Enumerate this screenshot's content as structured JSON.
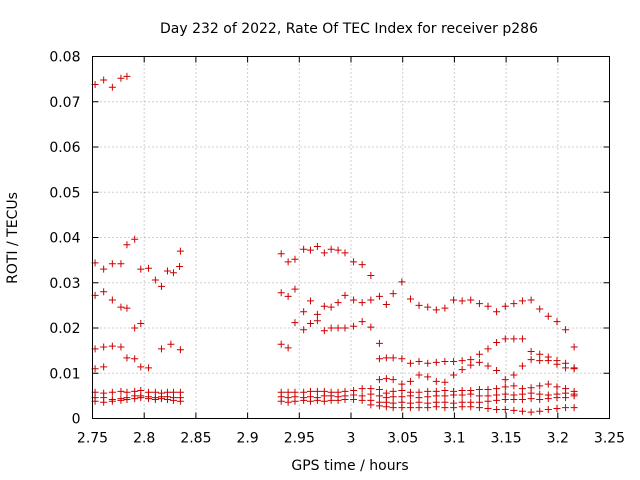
{
  "chart_data": {
    "type": "scatter",
    "title": "Day 232 of 2022, Rate Of TEC Index for receiver p286",
    "xlabel": "GPS time / hours",
    "ylabel": "ROTI / TECUs",
    "xlim": [
      2.75,
      3.25
    ],
    "ylim": [
      0,
      0.08
    ],
    "grid": true,
    "marker": "+",
    "marker_color": "#cc0000",
    "x_ticks": [
      {
        "value": 2.75,
        "label": "2.75"
      },
      {
        "value": 2.8,
        "label": "2.8"
      },
      {
        "value": 2.85,
        "label": "2.85"
      },
      {
        "value": 2.9,
        "label": "2.9"
      },
      {
        "value": 2.95,
        "label": "2.95"
      },
      {
        "value": 3.0,
        "label": "3"
      },
      {
        "value": 3.05,
        "label": "3.05"
      },
      {
        "value": 3.1,
        "label": "3.1"
      },
      {
        "value": 3.15,
        "label": "3.15"
      },
      {
        "value": 3.2,
        "label": "3.2"
      },
      {
        "value": 3.25,
        "label": "3.25"
      }
    ],
    "y_ticks": [
      {
        "value": 0,
        "label": "0"
      },
      {
        "value": 0.01,
        "label": "0.01"
      },
      {
        "value": 0.02,
        "label": "0.02"
      },
      {
        "value": 0.03,
        "label": "0.03"
      },
      {
        "value": 0.04,
        "label": "0.04"
      },
      {
        "value": 0.05,
        "label": "0.05"
      },
      {
        "value": 0.06,
        "label": "0.06"
      },
      {
        "value": 0.07,
        "label": "0.07"
      },
      {
        "value": 0.08,
        "label": "0.08"
      }
    ],
    "points": [
      [
        2.7525,
        0.0738
      ],
      [
        2.7608,
        0.0748
      ],
      [
        2.7692,
        0.0732
      ],
      [
        2.7775,
        0.0752
      ],
      [
        2.7833,
        0.0756
      ],
      [
        2.7525,
        0.0344
      ],
      [
        2.7608,
        0.033
      ],
      [
        2.7692,
        0.0342
      ],
      [
        2.7775,
        0.0342
      ],
      [
        2.7833,
        0.0384
      ],
      [
        2.7908,
        0.0396
      ],
      [
        2.7967,
        0.033
      ],
      [
        2.8042,
        0.0332
      ],
      [
        2.8108,
        0.0306
      ],
      [
        2.8167,
        0.0292
      ],
      [
        2.8225,
        0.0326
      ],
      [
        2.8283,
        0.0322
      ],
      [
        2.8342,
        0.0336
      ],
      [
        2.835,
        0.037
      ],
      [
        2.7525,
        0.0272
      ],
      [
        2.7608,
        0.028
      ],
      [
        2.7692,
        0.0262
      ],
      [
        2.7775,
        0.0246
      ],
      [
        2.7833,
        0.0244
      ],
      [
        2.7908,
        0.02
      ],
      [
        2.7967,
        0.021
      ],
      [
        2.7525,
        0.0154
      ],
      [
        2.7608,
        0.0158
      ],
      [
        2.7692,
        0.016
      ],
      [
        2.7775,
        0.0158
      ],
      [
        2.7833,
        0.0134
      ],
      [
        2.7908,
        0.0132
      ],
      [
        2.7967,
        0.0114
      ],
      [
        2.8042,
        0.0112
      ],
      [
        2.8167,
        0.0154
      ],
      [
        2.8258,
        0.0164
      ],
      [
        2.835,
        0.0152
      ],
      [
        2.7525,
        0.011
      ],
      [
        2.7608,
        0.0114
      ],
      [
        2.7525,
        0.0058
      ],
      [
        2.7608,
        0.0056
      ],
      [
        2.7692,
        0.0058
      ],
      [
        2.7775,
        0.006
      ],
      [
        2.7833,
        0.0058
      ],
      [
        2.7908,
        0.006
      ],
      [
        2.7967,
        0.0062
      ],
      [
        2.8042,
        0.0058
      ],
      [
        2.8108,
        0.0058
      ],
      [
        2.8167,
        0.0056
      ],
      [
        2.8225,
        0.0058
      ],
      [
        2.8283,
        0.0058
      ],
      [
        2.835,
        0.0058
      ],
      [
        2.7525,
        0.0046
      ],
      [
        2.7608,
        0.0046
      ],
      [
        2.7692,
        0.0042
      ],
      [
        2.7775,
        0.0044
      ],
      [
        2.7833,
        0.0046
      ],
      [
        2.7908,
        0.005
      ],
      [
        2.7967,
        0.005
      ],
      [
        2.8042,
        0.0048
      ],
      [
        2.8108,
        0.0046
      ],
      [
        2.8167,
        0.0048
      ],
      [
        2.8225,
        0.0048
      ],
      [
        2.8283,
        0.0046
      ],
      [
        2.835,
        0.0046
      ],
      [
        2.7525,
        0.0038
      ],
      [
        2.7608,
        0.0036
      ],
      [
        2.7692,
        0.0038
      ],
      [
        2.7775,
        0.004
      ],
      [
        2.7833,
        0.0042
      ],
      [
        2.7908,
        0.0044
      ],
      [
        2.7967,
        0.0046
      ],
      [
        2.8042,
        0.0044
      ],
      [
        2.8108,
        0.0042
      ],
      [
        2.8167,
        0.0044
      ],
      [
        2.8225,
        0.0042
      ],
      [
        2.8283,
        0.004
      ],
      [
        2.835,
        0.0038
      ],
      [
        2.9325,
        0.0364
      ],
      [
        2.9392,
        0.0346
      ],
      [
        2.9458,
        0.0352
      ],
      [
        2.9542,
        0.0374
      ],
      [
        2.9608,
        0.0372
      ],
      [
        2.9675,
        0.038
      ],
      [
        2.9742,
        0.0366
      ],
      [
        2.9808,
        0.0374
      ],
      [
        2.9875,
        0.0372
      ],
      [
        2.9942,
        0.0366
      ],
      [
        3.0025,
        0.0346
      ],
      [
        3.0108,
        0.034
      ],
      [
        3.0192,
        0.0316
      ],
      [
        2.9325,
        0.0278
      ],
      [
        2.9392,
        0.027
      ],
      [
        2.9458,
        0.0286
      ],
      [
        2.9542,
        0.0236
      ],
      [
        2.9608,
        0.026
      ],
      [
        2.9675,
        0.023
      ],
      [
        2.9742,
        0.0248
      ],
      [
        2.9808,
        0.0246
      ],
      [
        2.9875,
        0.0256
      ],
      [
        2.9942,
        0.0272
      ],
      [
        3.0025,
        0.0262
      ],
      [
        3.0108,
        0.0256
      ],
      [
        3.0192,
        0.0262
      ],
      [
        3.0275,
        0.027
      ],
      [
        3.0342,
        0.0252
      ],
      [
        3.0408,
        0.0276
      ],
      [
        3.0492,
        0.0302
      ],
      [
        3.0575,
        0.0264
      ],
      [
        3.0658,
        0.025
      ],
      [
        3.0742,
        0.0246
      ],
      [
        3.0825,
        0.024
      ],
      [
        3.0908,
        0.0244
      ],
      [
        3.0992,
        0.0262
      ],
      [
        3.1075,
        0.026
      ],
      [
        3.1158,
        0.0262
      ],
      [
        3.1242,
        0.0254
      ],
      [
        3.1325,
        0.0248
      ],
      [
        3.1408,
        0.0236
      ],
      [
        3.1492,
        0.0248
      ],
      [
        3.1575,
        0.0254
      ],
      [
        3.1658,
        0.026
      ],
      [
        3.1742,
        0.0262
      ],
      [
        3.1825,
        0.0242
      ],
      [
        3.1908,
        0.0226
      ],
      [
        3.1992,
        0.0214
      ],
      [
        3.2075,
        0.0196
      ],
      [
        3.2158,
        0.0158
      ],
      [
        2.9458,
        0.0212
      ],
      [
        2.9542,
        0.0196
      ],
      [
        2.9608,
        0.021
      ],
      [
        2.9675,
        0.0216
      ],
      [
        2.9742,
        0.0194
      ],
      [
        2.9808,
        0.02
      ],
      [
        2.9875,
        0.02
      ],
      [
        2.9942,
        0.02
      ],
      [
        3.0025,
        0.0204
      ],
      [
        3.0108,
        0.0214
      ],
      [
        3.0192,
        0.0202
      ],
      [
        3.0275,
        0.0166
      ],
      [
        2.9325,
        0.0164
      ],
      [
        2.9392,
        0.0156
      ],
      [
        3.0275,
        0.0132
      ],
      [
        3.0342,
        0.0134
      ],
      [
        3.0408,
        0.0134
      ],
      [
        3.0492,
        0.0132
      ],
      [
        3.0575,
        0.0122
      ],
      [
        3.0658,
        0.0126
      ],
      [
        3.0742,
        0.0122
      ],
      [
        3.0825,
        0.0124
      ],
      [
        3.0908,
        0.0126
      ],
      [
        3.0992,
        0.0126
      ],
      [
        3.1075,
        0.0128
      ],
      [
        3.1158,
        0.013
      ],
      [
        3.1242,
        0.0142
      ],
      [
        3.1325,
        0.0154
      ],
      [
        3.1408,
        0.0168
      ],
      [
        3.1492,
        0.0176
      ],
      [
        3.1575,
        0.0176
      ],
      [
        3.1658,
        0.0176
      ],
      [
        3.1742,
        0.0148
      ],
      [
        3.1825,
        0.0142
      ],
      [
        3.1908,
        0.0128
      ],
      [
        3.1992,
        0.012
      ],
      [
        3.2075,
        0.0112
      ],
      [
        3.2158,
        0.0112
      ],
      [
        3.0275,
        0.0086
      ],
      [
        3.0342,
        0.0088
      ],
      [
        3.0408,
        0.0086
      ],
      [
        3.0492,
        0.0076
      ],
      [
        3.0575,
        0.0082
      ],
      [
        3.0658,
        0.0096
      ],
      [
        3.0742,
        0.0092
      ],
      [
        3.0825,
        0.0082
      ],
      [
        3.0908,
        0.008
      ],
      [
        3.0992,
        0.0096
      ],
      [
        3.1075,
        0.0108
      ],
      [
        3.1158,
        0.0118
      ],
      [
        3.1242,
        0.0124
      ],
      [
        3.1325,
        0.0116
      ],
      [
        3.1408,
        0.0106
      ],
      [
        3.1492,
        0.0086
      ],
      [
        3.1575,
        0.0096
      ],
      [
        3.1658,
        0.0116
      ],
      [
        3.1742,
        0.013
      ],
      [
        3.1825,
        0.0128
      ],
      [
        3.1908,
        0.0136
      ],
      [
        3.1992,
        0.0128
      ],
      [
        3.2075,
        0.0122
      ],
      [
        3.2158,
        0.011
      ],
      [
        2.9325,
        0.0058
      ],
      [
        2.9392,
        0.0058
      ],
      [
        2.9458,
        0.0058
      ],
      [
        2.9542,
        0.0058
      ],
      [
        2.9608,
        0.006
      ],
      [
        2.9675,
        0.006
      ],
      [
        2.9742,
        0.006
      ],
      [
        2.9808,
        0.0058
      ],
      [
        2.9875,
        0.0058
      ],
      [
        2.9942,
        0.006
      ],
      [
        3.0025,
        0.0062
      ],
      [
        3.0108,
        0.0066
      ],
      [
        3.0192,
        0.0066
      ],
      [
        3.0275,
        0.0064
      ],
      [
        3.0342,
        0.0056
      ],
      [
        3.0408,
        0.006
      ],
      [
        3.0492,
        0.0062
      ],
      [
        3.0575,
        0.0058
      ],
      [
        3.0658,
        0.0058
      ],
      [
        3.0742,
        0.006
      ],
      [
        3.0825,
        0.006
      ],
      [
        3.0908,
        0.0062
      ],
      [
        3.0992,
        0.006
      ],
      [
        3.1075,
        0.0062
      ],
      [
        3.1158,
        0.0062
      ],
      [
        3.1242,
        0.0064
      ],
      [
        3.1325,
        0.0064
      ],
      [
        3.1408,
        0.0066
      ],
      [
        3.1492,
        0.007
      ],
      [
        3.1575,
        0.0072
      ],
      [
        3.1658,
        0.0066
      ],
      [
        3.1742,
        0.0068
      ],
      [
        3.1825,
        0.0072
      ],
      [
        3.1908,
        0.0076
      ],
      [
        3.1992,
        0.007
      ],
      [
        3.2075,
        0.0066
      ],
      [
        3.2158,
        0.006
      ],
      [
        2.9325,
        0.0048
      ],
      [
        2.9392,
        0.0046
      ],
      [
        2.9458,
        0.0048
      ],
      [
        2.9542,
        0.0046
      ],
      [
        2.9608,
        0.0048
      ],
      [
        2.9675,
        0.0046
      ],
      [
        2.9742,
        0.005
      ],
      [
        2.9808,
        0.005
      ],
      [
        2.9875,
        0.0048
      ],
      [
        2.9942,
        0.005
      ],
      [
        3.0025,
        0.0052
      ],
      [
        3.0108,
        0.005
      ],
      [
        3.0192,
        0.0054
      ],
      [
        3.0275,
        0.005
      ],
      [
        3.0342,
        0.0046
      ],
      [
        3.0408,
        0.0048
      ],
      [
        3.0492,
        0.0048
      ],
      [
        3.0575,
        0.005
      ],
      [
        3.0658,
        0.0046
      ],
      [
        3.0742,
        0.0048
      ],
      [
        3.0825,
        0.005
      ],
      [
        3.0908,
        0.005
      ],
      [
        3.0992,
        0.0052
      ],
      [
        3.1075,
        0.0052
      ],
      [
        3.1158,
        0.0054
      ],
      [
        3.1242,
        0.005
      ],
      [
        3.1325,
        0.005
      ],
      [
        3.1408,
        0.0052
      ],
      [
        3.1492,
        0.0054
      ],
      [
        3.1575,
        0.0052
      ],
      [
        3.1658,
        0.0054
      ],
      [
        3.1742,
        0.0056
      ],
      [
        3.1825,
        0.0054
      ],
      [
        3.1908,
        0.0052
      ],
      [
        3.1992,
        0.0054
      ],
      [
        3.2075,
        0.0056
      ],
      [
        3.2158,
        0.0054
      ],
      [
        2.9325,
        0.0038
      ],
      [
        2.9392,
        0.0036
      ],
      [
        2.9458,
        0.0038
      ],
      [
        2.9542,
        0.004
      ],
      [
        2.9608,
        0.0038
      ],
      [
        2.9675,
        0.004
      ],
      [
        2.9742,
        0.0038
      ],
      [
        2.9808,
        0.004
      ],
      [
        2.9875,
        0.004
      ],
      [
        2.9942,
        0.0042
      ],
      [
        3.0025,
        0.0042
      ],
      [
        3.0108,
        0.004
      ],
      [
        3.0192,
        0.004
      ],
      [
        3.0275,
        0.0036
      ],
      [
        3.0342,
        0.0036
      ],
      [
        3.0408,
        0.0034
      ],
      [
        3.0492,
        0.0036
      ],
      [
        3.0575,
        0.0034
      ],
      [
        3.0658,
        0.0036
      ],
      [
        3.0742,
        0.0034
      ],
      [
        3.0825,
        0.0036
      ],
      [
        3.0908,
        0.0036
      ],
      [
        3.0992,
        0.0034
      ],
      [
        3.1075,
        0.0036
      ],
      [
        3.1158,
        0.0036
      ],
      [
        3.1242,
        0.0036
      ],
      [
        3.1325,
        0.0038
      ],
      [
        3.1408,
        0.004
      ],
      [
        3.1492,
        0.0042
      ],
      [
        3.1575,
        0.0042
      ],
      [
        3.1658,
        0.0042
      ],
      [
        3.1742,
        0.0044
      ],
      [
        3.1825,
        0.0042
      ],
      [
        3.1908,
        0.0044
      ],
      [
        3.1992,
        0.0046
      ],
      [
        3.2075,
        0.0046
      ],
      [
        3.2158,
        0.005
      ],
      [
        3.0192,
        0.003
      ],
      [
        3.0275,
        0.0028
      ],
      [
        3.0342,
        0.0026
      ],
      [
        3.0408,
        0.0024
      ],
      [
        3.0492,
        0.0024
      ],
      [
        3.0575,
        0.0024
      ],
      [
        3.0658,
        0.0024
      ],
      [
        3.0742,
        0.0024
      ],
      [
        3.0825,
        0.0026
      ],
      [
        3.0908,
        0.0024
      ],
      [
        3.0992,
        0.0024
      ],
      [
        3.1075,
        0.0026
      ],
      [
        3.1158,
        0.0026
      ],
      [
        3.1242,
        0.0024
      ],
      [
        3.1325,
        0.0022
      ],
      [
        3.1408,
        0.002
      ],
      [
        3.1492,
        0.002
      ],
      [
        3.1575,
        0.0018
      ],
      [
        3.1658,
        0.0016
      ],
      [
        3.1742,
        0.0014
      ],
      [
        3.1825,
        0.0016
      ],
      [
        3.1908,
        0.002
      ],
      [
        3.1992,
        0.0022
      ],
      [
        3.2075,
        0.0024
      ],
      [
        3.2158,
        0.0024
      ]
    ]
  }
}
